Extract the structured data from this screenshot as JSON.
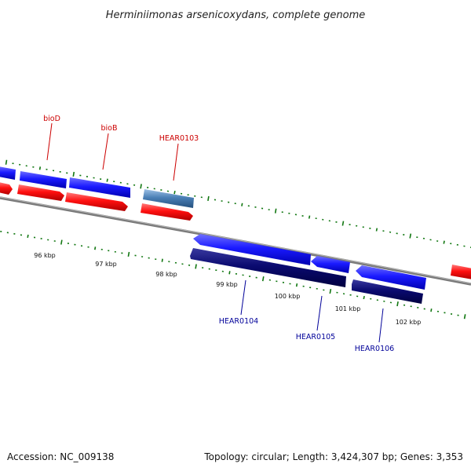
{
  "title": "Herminiimonas arsenicoxydans, complete genome",
  "footer": {
    "accession": "Accession: NC_009138",
    "summary": "Topology: circular; Length: 3,424,307 bp; Genes: 3,353"
  },
  "ticks": [
    {
      "label": "96 kbp"
    },
    {
      "label": "97 kbp"
    },
    {
      "label": "98 kbp"
    },
    {
      "label": "99 kbp"
    },
    {
      "label": "100 kbp"
    },
    {
      "label": "101 kbp"
    },
    {
      "label": "102 kbp"
    }
  ],
  "gene_labels": [
    {
      "name": "bioD",
      "strand": "forward"
    },
    {
      "name": "bioB",
      "strand": "forward"
    },
    {
      "name": "HEAR0103",
      "strand": "forward"
    },
    {
      "name": "HEAR0104",
      "strand": "reverse"
    },
    {
      "name": "HEAR0105",
      "strand": "reverse"
    },
    {
      "name": "HEAR0106",
      "strand": "reverse"
    }
  ],
  "colors": {
    "forward_label": "#cc0000",
    "reverse_label": "#000099",
    "forward_cds": "#0000ee",
    "forward_gene": "#ee0000",
    "reverse_cds": "#0000ee",
    "reverse_gene": "#000066",
    "other_feature": "#4a7fb5",
    "backbone": "#888888",
    "tick": "#117711"
  }
}
